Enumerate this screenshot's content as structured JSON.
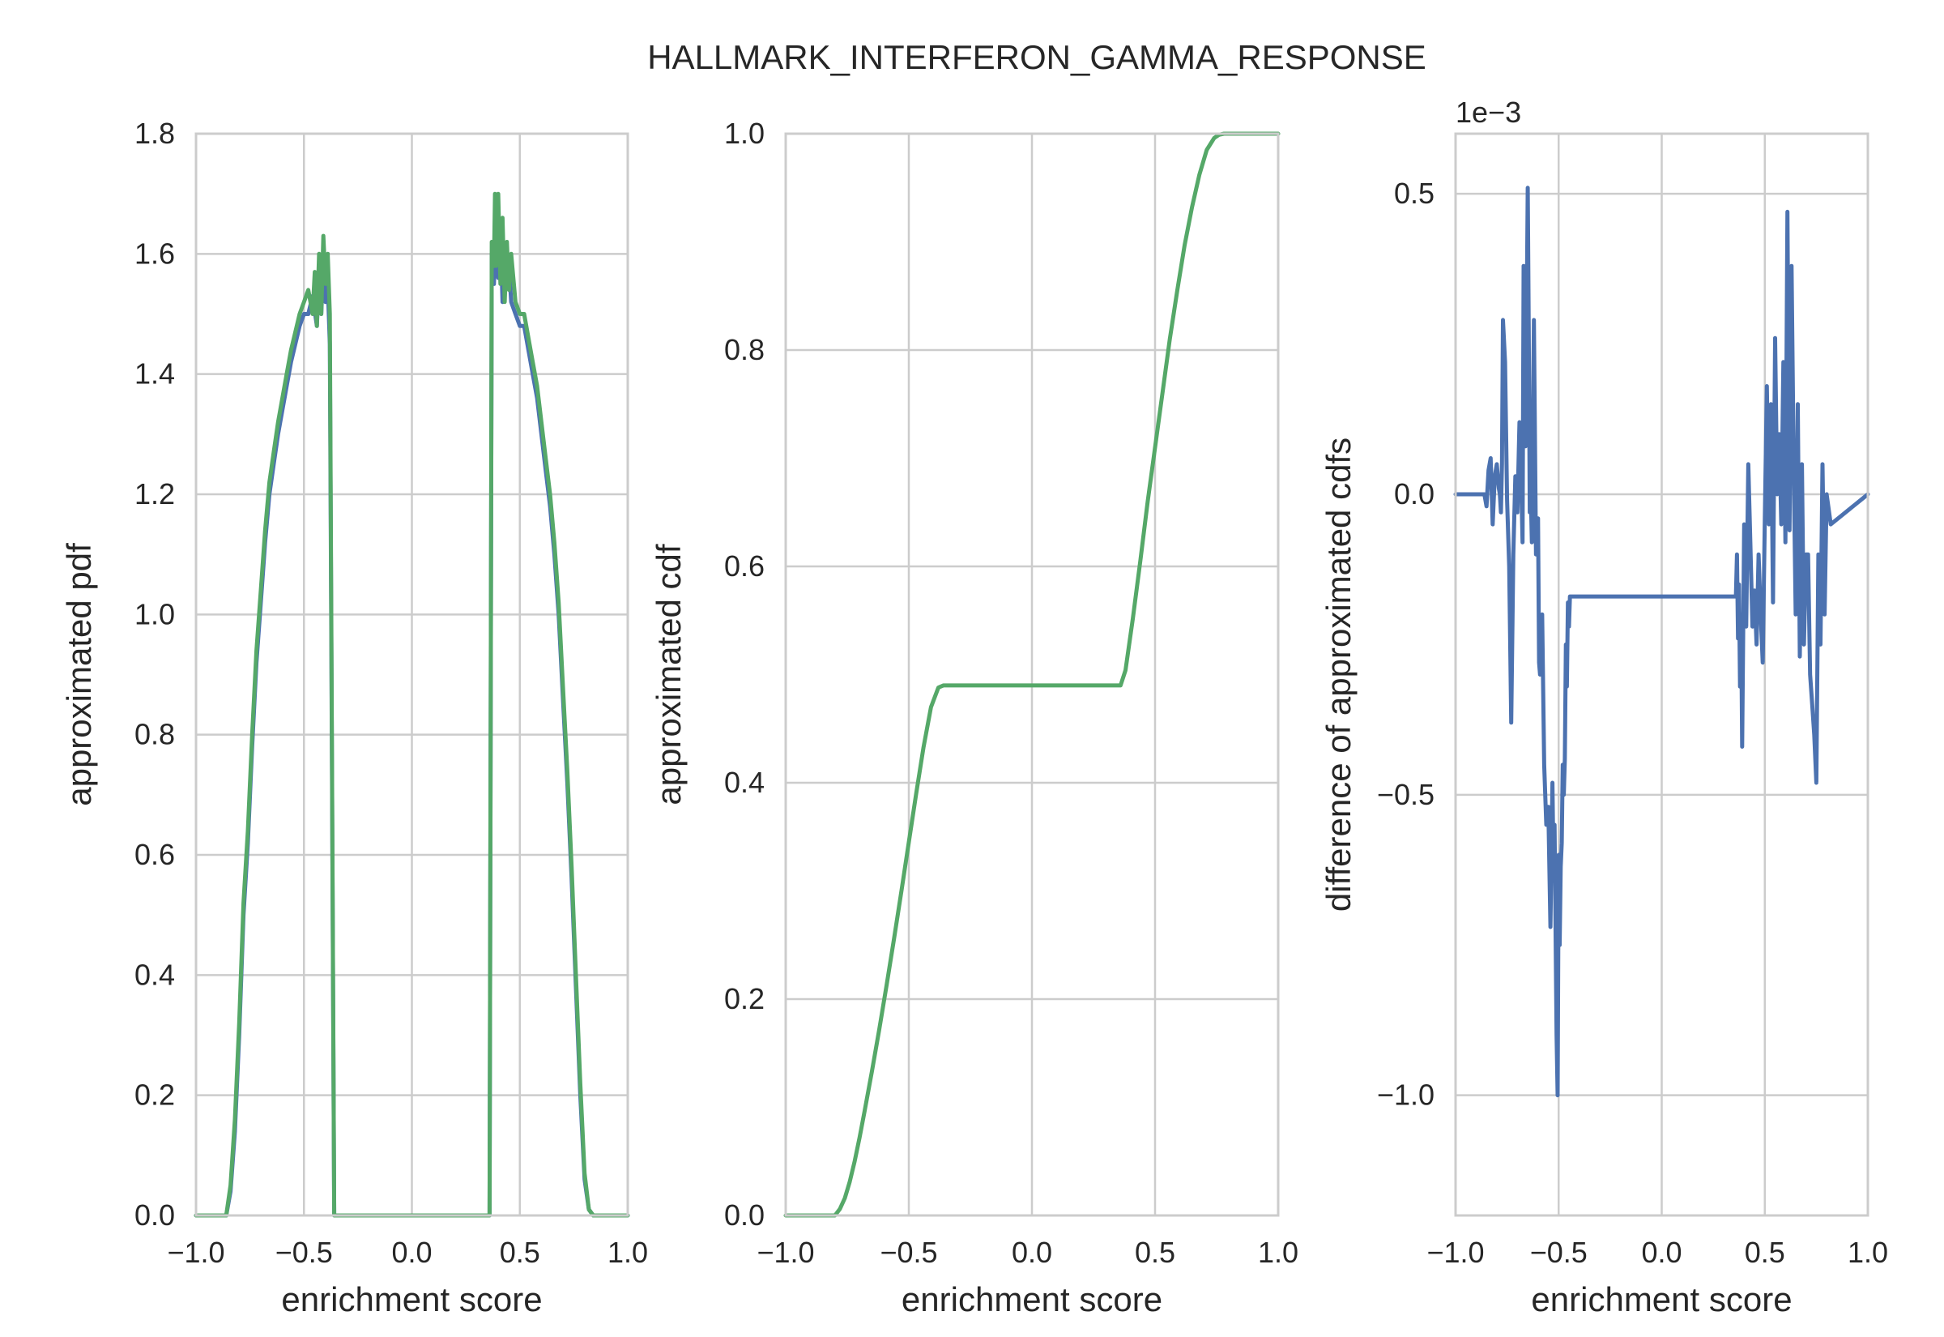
{
  "figure": {
    "title": "HALLMARK_INTERFERON_GAMMA_RESPONSE",
    "colors": {
      "blue": "#4c72b0",
      "green": "#55a868",
      "grid": "#cccccc",
      "text": "#262626"
    }
  },
  "chart_data": [
    {
      "type": "line",
      "xlabel": "enrichment score",
      "ylabel": "approximated pdf",
      "xlim": [
        -1.0,
        1.0
      ],
      "ylim": [
        0.0,
        1.8
      ],
      "xticks": [
        -1.0,
        -0.5,
        0.0,
        0.5,
        1.0
      ],
      "xtick_labels": [
        "−1.0",
        "−0.5",
        "0.0",
        "0.5",
        "1.0"
      ],
      "yticks": [
        0.0,
        0.2,
        0.4,
        0.6,
        0.8,
        1.0,
        1.2,
        1.4,
        1.6,
        1.8
      ],
      "ytick_labels": [
        "0.0",
        "0.2",
        "0.4",
        "0.6",
        "0.8",
        "1.0",
        "1.2",
        "1.4",
        "1.6",
        "1.8"
      ],
      "grid": true,
      "series": [
        {
          "color": "#4c72b0",
          "x": [
            -1.0,
            -0.86,
            -0.84,
            -0.82,
            -0.8,
            -0.78,
            -0.76,
            -0.74,
            -0.72,
            -0.7,
            -0.68,
            -0.66,
            -0.64,
            -0.62,
            -0.6,
            -0.58,
            -0.56,
            -0.54,
            -0.52,
            -0.5,
            -0.48,
            -0.46,
            -0.44,
            -0.43,
            -0.42,
            -0.41,
            -0.4,
            -0.39,
            -0.38,
            -0.36,
            -0.34,
            0.34,
            0.36,
            0.37,
            0.38,
            0.39,
            0.4,
            0.41,
            0.42,
            0.43,
            0.44,
            0.45,
            0.46,
            0.48,
            0.5,
            0.52,
            0.54,
            0.56,
            0.58,
            0.6,
            0.62,
            0.64,
            0.66,
            0.68,
            0.7,
            0.72,
            0.74,
            0.76,
            0.78,
            0.8,
            0.82,
            0.84,
            0.86,
            1.0
          ],
          "y": [
            0.0,
            0.0,
            0.04,
            0.14,
            0.3,
            0.5,
            0.62,
            0.78,
            0.92,
            1.02,
            1.12,
            1.2,
            1.25,
            1.3,
            1.34,
            1.38,
            1.42,
            1.45,
            1.48,
            1.5,
            1.5,
            1.53,
            1.48,
            1.56,
            1.5,
            1.58,
            1.52,
            1.55,
            1.45,
            0.0,
            0.0,
            0.0,
            0.0,
            1.6,
            1.55,
            1.66,
            1.56,
            1.64,
            1.52,
            1.6,
            1.55,
            1.58,
            1.52,
            1.5,
            1.48,
            1.48,
            1.44,
            1.4,
            1.36,
            1.3,
            1.24,
            1.18,
            1.1,
            1.0,
            0.86,
            0.72,
            0.56,
            0.38,
            0.2,
            0.06,
            0.01,
            0.0,
            0.0,
            0.0
          ]
        },
        {
          "color": "#55a868",
          "x": [
            -1.0,
            -0.86,
            -0.84,
            -0.82,
            -0.8,
            -0.78,
            -0.76,
            -0.74,
            -0.72,
            -0.7,
            -0.68,
            -0.66,
            -0.64,
            -0.62,
            -0.6,
            -0.58,
            -0.56,
            -0.54,
            -0.52,
            -0.5,
            -0.48,
            -0.46,
            -0.45,
            -0.44,
            -0.43,
            -0.42,
            -0.41,
            -0.4,
            -0.39,
            -0.38,
            -0.36,
            -0.34,
            0.34,
            0.36,
            0.37,
            0.38,
            0.385,
            0.39,
            0.4,
            0.41,
            0.42,
            0.43,
            0.44,
            0.45,
            0.46,
            0.48,
            0.5,
            0.52,
            0.54,
            0.56,
            0.58,
            0.6,
            0.62,
            0.64,
            0.66,
            0.68,
            0.7,
            0.72,
            0.74,
            0.76,
            0.78,
            0.8,
            0.82,
            0.84,
            0.86,
            1.0
          ],
          "y": [
            0.0,
            0.0,
            0.05,
            0.16,
            0.32,
            0.52,
            0.64,
            0.8,
            0.94,
            1.04,
            1.14,
            1.22,
            1.27,
            1.32,
            1.36,
            1.4,
            1.44,
            1.47,
            1.5,
            1.52,
            1.54,
            1.5,
            1.57,
            1.48,
            1.6,
            1.5,
            1.63,
            1.55,
            1.6,
            1.5,
            0.0,
            0.0,
            0.0,
            0.0,
            1.62,
            1.58,
            1.7,
            1.58,
            1.7,
            1.55,
            1.66,
            1.52,
            1.62,
            1.54,
            1.6,
            1.52,
            1.5,
            1.5,
            1.46,
            1.42,
            1.38,
            1.32,
            1.26,
            1.2,
            1.12,
            1.02,
            0.88,
            0.74,
            0.58,
            0.4,
            0.22,
            0.07,
            0.01,
            0.0,
            0.0,
            0.0
          ]
        }
      ]
    },
    {
      "type": "line",
      "xlabel": "enrichment score",
      "ylabel": "approximated cdf",
      "xlim": [
        -1.0,
        1.0
      ],
      "ylim": [
        0.0,
        1.0
      ],
      "xticks": [
        -1.0,
        -0.5,
        0.0,
        0.5,
        1.0
      ],
      "xtick_labels": [
        "−1.0",
        "−0.5",
        "0.0",
        "0.5",
        "1.0"
      ],
      "yticks": [
        0.0,
        0.2,
        0.4,
        0.6,
        0.8,
        1.0
      ],
      "ytick_labels": [
        "0.0",
        "0.2",
        "0.4",
        "0.6",
        "0.8",
        "1.0"
      ],
      "grid": true,
      "series": [
        {
          "color": "#55a868",
          "x": [
            -1.0,
            -0.8,
            -0.78,
            -0.76,
            -0.74,
            -0.72,
            -0.7,
            -0.68,
            -0.65,
            -0.62,
            -0.59,
            -0.56,
            -0.53,
            -0.5,
            -0.47,
            -0.44,
            -0.41,
            -0.38,
            -0.36,
            -0.34,
            0.34,
            0.36,
            0.38,
            0.41,
            0.44,
            0.47,
            0.5,
            0.53,
            0.56,
            0.59,
            0.62,
            0.65,
            0.68,
            0.71,
            0.74,
            0.76,
            0.78,
            0.8,
            1.0
          ],
          "y": [
            0.0,
            0.0,
            0.006,
            0.016,
            0.031,
            0.05,
            0.072,
            0.096,
            0.133,
            0.172,
            0.213,
            0.256,
            0.3,
            0.345,
            0.39,
            0.433,
            0.47,
            0.488,
            0.49,
            0.49,
            0.49,
            0.49,
            0.504,
            0.552,
            0.605,
            0.66,
            0.71,
            0.76,
            0.81,
            0.855,
            0.897,
            0.932,
            0.962,
            0.985,
            0.996,
            0.999,
            1.0,
            1.0,
            1.0
          ]
        }
      ]
    },
    {
      "type": "line",
      "xlabel": "enrichment score",
      "ylabel": "difference of approximated cdfs",
      "offset_text": "1e−3",
      "xlim": [
        -1.0,
        1.0
      ],
      "ylim": [
        -1.2,
        0.6
      ],
      "xticks": [
        -1.0,
        -0.5,
        0.0,
        0.5,
        1.0
      ],
      "xtick_labels": [
        "−1.0",
        "−0.5",
        "0.0",
        "0.5",
        "1.0"
      ],
      "yticks": [
        -1.0,
        -0.5,
        0.0,
        0.5
      ],
      "ytick_labels": [
        "−1.0",
        "−0.5",
        "0.0",
        "0.5"
      ],
      "grid": true,
      "series": [
        {
          "color": "#4c72b0",
          "x": [
            -1.0,
            -0.86,
            -0.85,
            -0.84,
            -0.83,
            -0.82,
            -0.81,
            -0.8,
            -0.79,
            -0.785,
            -0.78,
            -0.775,
            -0.77,
            -0.76,
            -0.75,
            -0.74,
            -0.73,
            -0.72,
            -0.71,
            -0.7,
            -0.69,
            -0.68,
            -0.675,
            -0.67,
            -0.66,
            -0.65,
            -0.645,
            -0.64,
            -0.635,
            -0.63,
            -0.62,
            -0.61,
            -0.6,
            -0.595,
            -0.59,
            -0.58,
            -0.57,
            -0.56,
            -0.55,
            -0.54,
            -0.53,
            -0.525,
            -0.52,
            -0.51,
            -0.505,
            -0.5,
            -0.495,
            -0.49,
            -0.485,
            -0.48,
            -0.475,
            -0.47,
            -0.465,
            -0.46,
            -0.455,
            -0.45,
            -0.445,
            -0.44,
            -0.43,
            -0.42,
            -0.41,
            -0.4,
            -0.39,
            -0.38,
            0.34,
            0.35,
            0.36,
            0.365,
            0.37,
            0.375,
            0.38,
            0.385,
            0.39,
            0.4,
            0.41,
            0.42,
            0.43,
            0.44,
            0.45,
            0.46,
            0.47,
            0.48,
            0.49,
            0.5,
            0.51,
            0.52,
            0.53,
            0.54,
            0.55,
            0.56,
            0.57,
            0.58,
            0.59,
            0.6,
            0.61,
            0.62,
            0.63,
            0.64,
            0.65,
            0.66,
            0.67,
            0.68,
            0.69,
            0.7,
            0.71,
            0.72,
            0.73,
            0.74,
            0.75,
            0.76,
            0.77,
            0.78,
            0.79,
            0.8,
            0.82,
            1.0
          ],
          "y": [
            0.0,
            0.0,
            -0.02,
            0.04,
            0.06,
            -0.05,
            0.03,
            0.05,
            0.01,
            0.0,
            -0.03,
            0.05,
            0.29,
            0.22,
            -0.01,
            -0.12,
            -0.38,
            -0.1,
            0.03,
            -0.03,
            0.12,
            0.0,
            -0.08,
            0.38,
            0.08,
            0.51,
            0.28,
            -0.03,
            0.0,
            -0.08,
            0.29,
            -0.1,
            -0.04,
            -0.28,
            -0.3,
            -0.2,
            -0.45,
            -0.55,
            -0.52,
            -0.72,
            -0.48,
            -0.62,
            -0.55,
            -0.9,
            -1.0,
            -0.6,
            -0.75,
            -0.62,
            -0.58,
            -0.45,
            -0.5,
            -0.44,
            -0.25,
            -0.32,
            -0.18,
            -0.22,
            -0.17,
            -0.17,
            -0.17,
            -0.17,
            -0.17,
            -0.17,
            -0.17,
            -0.17,
            -0.17,
            -0.17,
            -0.17,
            -0.1,
            -0.24,
            -0.15,
            -0.32,
            -0.2,
            -0.42,
            -0.05,
            -0.22,
            0.05,
            -0.08,
            -0.22,
            -0.16,
            -0.25,
            -0.1,
            -0.2,
            -0.28,
            -0.04,
            0.18,
            -0.05,
            0.15,
            -0.18,
            0.26,
            0.0,
            0.1,
            -0.05,
            0.22,
            -0.08,
            0.47,
            -0.06,
            0.38,
            0.05,
            -0.2,
            0.15,
            -0.27,
            0.05,
            -0.25,
            -0.1,
            -0.1,
            -0.3,
            -0.35,
            -0.4,
            -0.48,
            -0.1,
            -0.25,
            0.05,
            -0.2,
            0.0,
            -0.05,
            0.0
          ]
        }
      ]
    }
  ]
}
